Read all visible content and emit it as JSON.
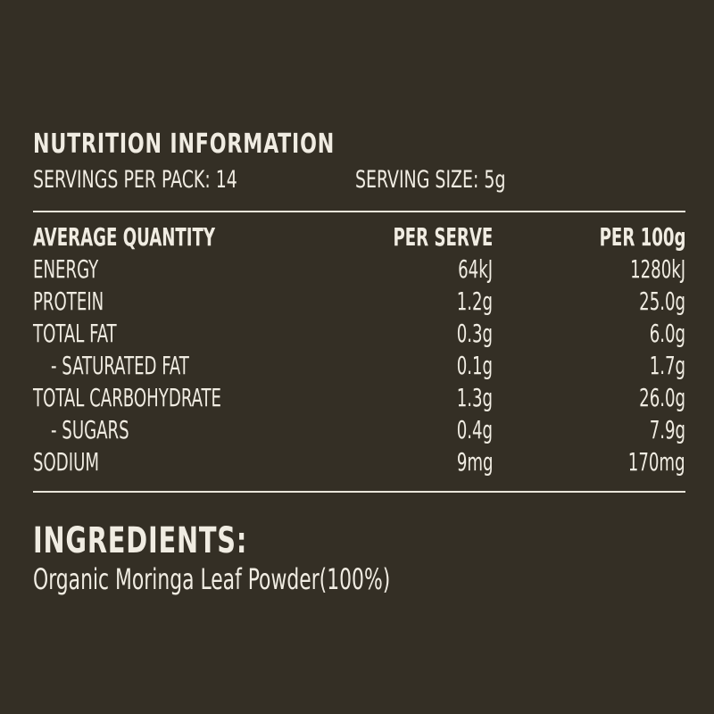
{
  "header": {
    "title": "NUTRITION INFORMATION",
    "servings_per_pack": "SERVINGS PER PACK: 14",
    "serving_size": "SERVING SIZE: 5g"
  },
  "table": {
    "columns": [
      "AVERAGE QUANTITY",
      "PER SERVE",
      "PER 100g"
    ],
    "rows": [
      {
        "name": "ENERGY",
        "per_serve": "64kJ",
        "per_100g": "1280kJ"
      },
      {
        "name": "PROTEIN",
        "per_serve": "1.2g",
        "per_100g": "25.0g"
      },
      {
        "name": "TOTAL FAT",
        "per_serve": "0.3g",
        "per_100g": "6.0g"
      },
      {
        "name": "- SATURATED FAT",
        "per_serve": "0.1g",
        "per_100g": "1.7g"
      },
      {
        "name": "TOTAL CARBOHYDRATE",
        "per_serve": "1.3g",
        "per_100g": "26.0g"
      },
      {
        "name": "- SUGARS",
        "per_serve": "0.4g",
        "per_100g": "7.9g"
      },
      {
        "name": "SODIUM",
        "per_serve": "9mg",
        "per_100g": "170mg"
      }
    ]
  },
  "ingredients": {
    "title": "INGREDIENTS:",
    "text": "Organic Moringa Leaf Powder(100%)"
  },
  "colors": {
    "background": "#342f25",
    "text": "#f0ece2"
  }
}
